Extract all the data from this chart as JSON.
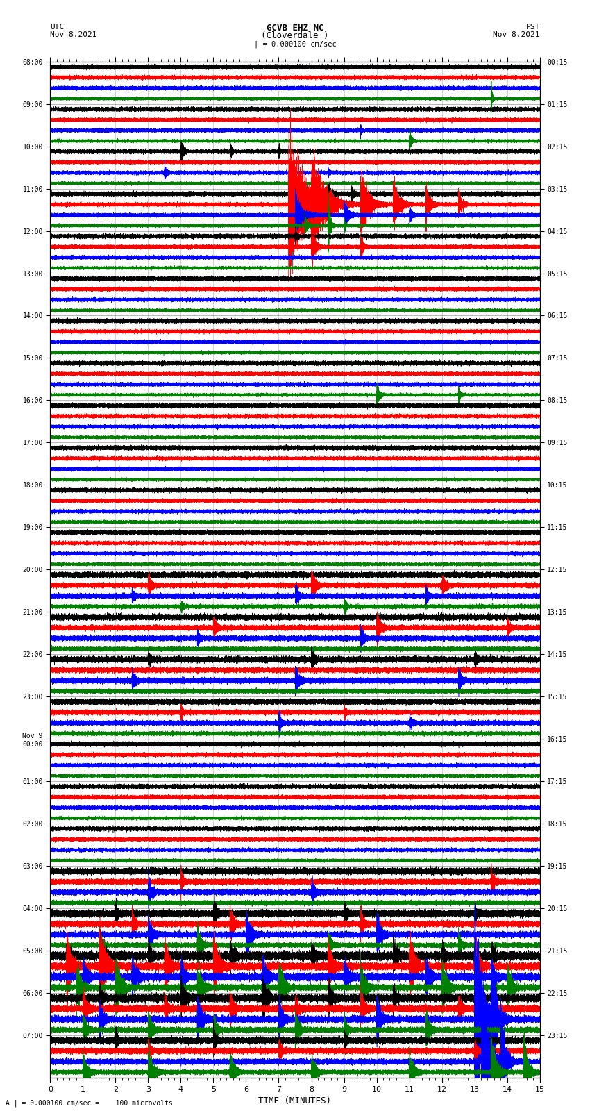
{
  "title_line1": "GCVB EHZ NC",
  "title_line2": "(Cloverdale )",
  "title_scale": "| = 0.000100 cm/sec",
  "utc_label": "UTC",
  "utc_date": "Nov 8,2021",
  "pst_label": "PST",
  "pst_date": "Nov 8,2021",
  "bottom_label": "A | = 0.000100 cm/sec =    100 microvolts",
  "xlabel": "TIME (MINUTES)",
  "left_times": [
    "08:00",
    "09:00",
    "10:00",
    "11:00",
    "12:00",
    "13:00",
    "14:00",
    "15:00",
    "16:00",
    "17:00",
    "18:00",
    "19:00",
    "20:00",
    "21:00",
    "22:00",
    "23:00",
    "Nov 9\n00:00",
    "01:00",
    "02:00",
    "03:00",
    "04:00",
    "05:00",
    "06:00",
    "07:00"
  ],
  "right_times": [
    "00:15",
    "01:15",
    "02:15",
    "03:15",
    "04:15",
    "05:15",
    "06:15",
    "07:15",
    "08:15",
    "09:15",
    "10:15",
    "11:15",
    "12:15",
    "13:15",
    "14:15",
    "15:15",
    "16:15",
    "17:15",
    "18:15",
    "19:15",
    "20:15",
    "21:15",
    "22:15",
    "23:15"
  ],
  "colors": [
    "black",
    "red",
    "blue",
    "green"
  ],
  "bg_color": "#ffffff",
  "n_rows": 24,
  "n_traces_per_row": 4,
  "minutes": 15,
  "fig_width": 8.5,
  "fig_height": 16.13,
  "dpi": 100
}
